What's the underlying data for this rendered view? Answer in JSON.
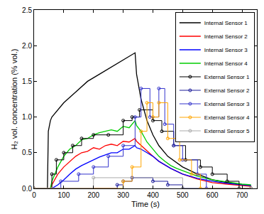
{
  "chart_data": {
    "type": "line",
    "x_label": "Time (s)",
    "y_label": "H₂ vol. concentration (% vol.)",
    "xlim": [
      0,
      750
    ],
    "xticks": [
      0,
      100,
      200,
      300,
      400,
      500,
      600,
      700
    ],
    "ylim": [
      0,
      2.5
    ],
    "yticks": [
      {
        "value": 0,
        "label": "0.0"
      },
      0.5,
      {
        "value": 1,
        "label": "1.0"
      },
      1.5,
      {
        "value": 2,
        "label": "2.0"
      },
      2.5
    ],
    "grid": false,
    "legend": "upper right",
    "series": [
      {
        "name": "Internal Sensor 1",
        "color": "#000000",
        "line_style": "solid",
        "marker": "none",
        "x": [
          0,
          45,
          48,
          55,
          60,
          80,
          100,
          140,
          180,
          220,
          260,
          300,
          330,
          340,
          345,
          360,
          380,
          400,
          420,
          450,
          500,
          550,
          600,
          650,
          700,
          730
        ],
        "values": [
          0,
          0,
          0.8,
          0.95,
          1.0,
          1.1,
          1.2,
          1.35,
          1.5,
          1.6,
          1.7,
          1.8,
          1.87,
          1.9,
          1.6,
          1.25,
          0.95,
          0.75,
          0.6,
          0.45,
          0.3,
          0.2,
          0.12,
          0.08,
          0.05,
          0.04
        ]
      },
      {
        "name": "Internal Sensor 2",
        "color": "#ff0000",
        "line_style": "solid",
        "marker": "none",
        "x": [
          0,
          55,
          60,
          80,
          100,
          120,
          140,
          160,
          180,
          200,
          220,
          240,
          260,
          280,
          300,
          320,
          340,
          345,
          360,
          380,
          400,
          420,
          440,
          460,
          480,
          500,
          550,
          600,
          650,
          700,
          730
        ],
        "values": [
          0,
          0,
          0.05,
          0.2,
          0.3,
          0.38,
          0.45,
          0.5,
          0.52,
          0.57,
          0.55,
          0.6,
          0.62,
          0.6,
          0.66,
          0.65,
          0.7,
          0.66,
          0.6,
          0.52,
          0.45,
          0.38,
          0.33,
          0.28,
          0.24,
          0.2,
          0.13,
          0.08,
          0.06,
          0.04,
          0.03
        ]
      },
      {
        "name": "Internal Sensor 3",
        "color": "#0000ff",
        "line_style": "solid",
        "marker": "none",
        "x": [
          0,
          55,
          60,
          80,
          100,
          120,
          140,
          160,
          180,
          200,
          220,
          240,
          260,
          280,
          300,
          320,
          340,
          345,
          360,
          380,
          400,
          420,
          440,
          460,
          480,
          500,
          550,
          600,
          650,
          700,
          730
        ],
        "values": [
          0,
          0,
          0,
          0.05,
          0.12,
          0.2,
          0.27,
          0.32,
          0.36,
          0.4,
          0.44,
          0.47,
          0.5,
          0.5,
          0.55,
          0.55,
          0.6,
          0.57,
          0.55,
          0.5,
          0.45,
          0.38,
          0.33,
          0.28,
          0.24,
          0.2,
          0.14,
          0.1,
          0.07,
          0.05,
          0.04
        ]
      },
      {
        "name": "Internal Sensor 4",
        "color": "#00cc00",
        "line_style": "solid",
        "marker": "none",
        "x": [
          0,
          55,
          60,
          80,
          100,
          120,
          140,
          160,
          180,
          200,
          220,
          240,
          260,
          280,
          300,
          320,
          340,
          345,
          360,
          380,
          400,
          420,
          440,
          460,
          480,
          500,
          550,
          600,
          650,
          700,
          730
        ],
        "values": [
          0,
          0,
          0.1,
          0.3,
          0.45,
          0.55,
          0.6,
          0.68,
          0.7,
          0.75,
          0.78,
          0.8,
          0.82,
          0.8,
          0.87,
          0.85,
          0.95,
          0.88,
          0.8,
          0.65,
          0.55,
          0.45,
          0.38,
          0.32,
          0.28,
          0.25,
          0.17,
          0.12,
          0.09,
          0.06,
          0.05
        ]
      },
      {
        "name": "External Sensor 1",
        "color": "#000000",
        "line_style": "step",
        "marker": "circle-open",
        "x": [
          0,
          60,
          75,
          100,
          130,
          160,
          200,
          250,
          300,
          330,
          355,
          400,
          430,
          470,
          510,
          560,
          600,
          650,
          690,
          730
        ],
        "values": [
          0,
          0.2,
          0.4,
          0.5,
          0.6,
          0.7,
          0.75,
          0.75,
          0.95,
          1.0,
          1.1,
          0.95,
          0.8,
          0.6,
          0.4,
          0.3,
          0.2,
          0.1,
          0,
          0
        ]
      },
      {
        "name": "External Sensor 2",
        "color": "#1a1a99",
        "line_style": "step",
        "marker": "circle-open",
        "x": [
          0,
          280,
          300,
          330,
          400,
          450,
          500,
          730
        ],
        "values": [
          0,
          0.05,
          0.1,
          0.15,
          0.1,
          0.05,
          0,
          0
        ]
      },
      {
        "name": "External Sensor 3",
        "color": "#3333cc",
        "line_style": "step",
        "marker": "circle-open",
        "x": [
          0,
          90,
          150,
          200,
          250,
          300,
          340,
          360,
          390,
          420,
          440,
          470,
          500,
          550,
          580,
          730
        ],
        "values": [
          0,
          0.1,
          0.2,
          0.3,
          0.45,
          0.6,
          1.0,
          1.4,
          1.0,
          1.4,
          0.9,
          0.6,
          0.4,
          0.2,
          0,
          0
        ]
      },
      {
        "name": "External Sensor 4",
        "color": "#ffa500",
        "line_style": "step",
        "marker": "circle-open",
        "x": [
          0,
          300,
          330,
          360,
          380,
          400,
          420,
          450,
          490,
          530,
          560,
          730
        ],
        "values": [
          0,
          0.1,
          0.3,
          0.8,
          1.2,
          1.0,
          1.2,
          0.7,
          0.4,
          0.2,
          0,
          0
        ]
      },
      {
        "name": "External Sensor 5",
        "color": "#aaaaaa",
        "line_style": "step",
        "marker": "circle-open",
        "x": [
          0,
          200,
          500,
          730
        ],
        "values": [
          0,
          0.15,
          0,
          0
        ]
      }
    ]
  }
}
